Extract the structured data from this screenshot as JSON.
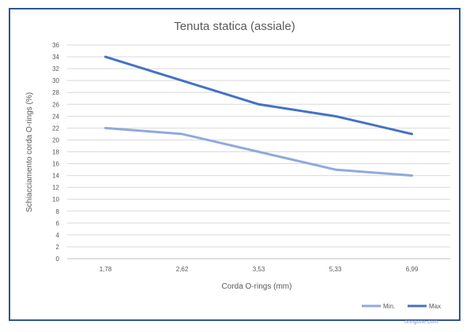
{
  "chart_data": {
    "type": "line",
    "title": "Tenuta statica (assiale)",
    "xlabel": "Corda O-rings (mm)",
    "ylabel": "Schiacciamento corda O-rings (%)",
    "categories": [
      "1,78",
      "2,62",
      "3,53",
      "5,33",
      "6,99"
    ],
    "ylim": [
      0,
      36
    ],
    "yticks": [
      0,
      2,
      4,
      6,
      8,
      10,
      12,
      14,
      16,
      18,
      20,
      22,
      24,
      26,
      28,
      30,
      32,
      34,
      36
    ],
    "grid": true,
    "legend_position": "bottom-right",
    "series": [
      {
        "name": "Min.",
        "values": [
          22,
          21,
          18,
          15,
          14
        ],
        "color": "#8faadc"
      },
      {
        "name": "Max",
        "values": [
          34,
          30,
          26,
          24,
          21
        ],
        "color": "#4472c4"
      }
    ]
  },
  "watermark": "oringone.com"
}
